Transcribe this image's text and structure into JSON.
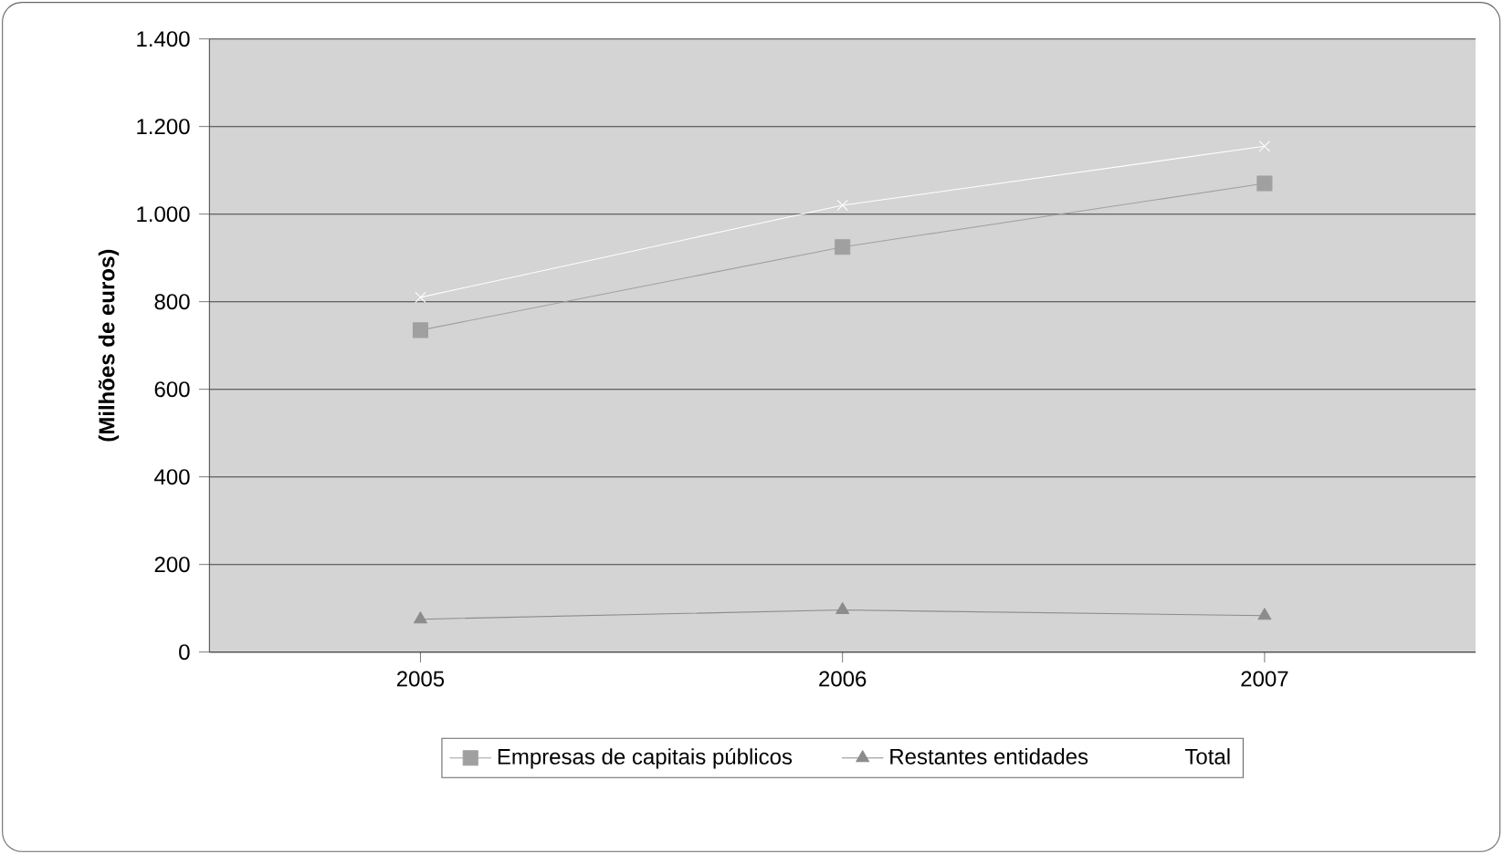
{
  "chart_data": {
    "type": "line",
    "ylabel": "(Milhões de euros)",
    "categories": [
      "2005",
      "2006",
      "2007"
    ],
    "series": [
      {
        "name": "Empresas de capitais públicos",
        "color": "#a0a0a0",
        "marker": "square",
        "values": [
          735,
          925,
          1070
        ]
      },
      {
        "name": "Restantes entidades",
        "color": "#8c8c8c",
        "marker": "triangle",
        "values": [
          75,
          96,
          83
        ]
      },
      {
        "name": "Total",
        "color": "#ffffff",
        "marker": "cross",
        "values": [
          810,
          1020,
          1155
        ]
      }
    ],
    "ylim": [
      0,
      1400
    ],
    "yticks": [
      0,
      200,
      400,
      600,
      800,
      {
        "value": 1000,
        "label": "1.000"
      },
      {
        "value": 1200,
        "label": "1.200"
      },
      {
        "value": 1400,
        "label": "1.400"
      }
    ],
    "grid": "y",
    "legend": "bottom"
  }
}
